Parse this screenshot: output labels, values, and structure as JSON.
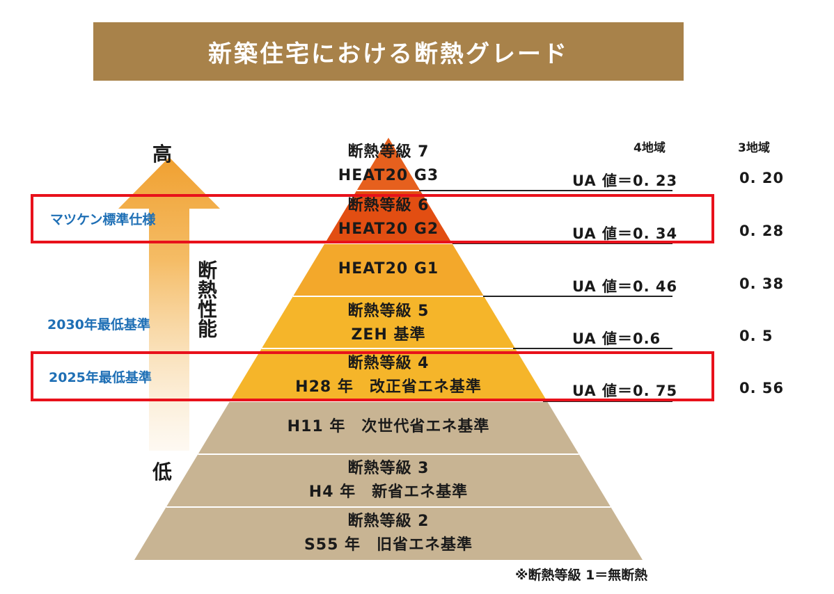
{
  "title": "新築住宅における断熱グレード",
  "colors": {
    "title_bg": "#A8824A",
    "tier_red": "#E24E12",
    "tier_orange": "#F3A82B",
    "tier_gold": "#F5B52A",
    "tier_beige": "#C8B493",
    "highlight_box": "#E8111B",
    "label_blue": "#1E6FB5",
    "arrow_orange": "#F0A030"
  },
  "axis": {
    "high": "高",
    "low": "低",
    "vertical_label": "断熱性能"
  },
  "columns": {
    "region4": "4地域",
    "region3": "3地域"
  },
  "levels": [
    {
      "line1": "断熱等級 7",
      "line2": "HEAT20 G3",
      "ua4": "UA 値＝0. 23",
      "ua3": "0. 20"
    },
    {
      "line1": "断熱等級 6",
      "line2": "HEAT20 G2",
      "ua4": "UA 値＝0. 34",
      "ua3": "0. 28"
    },
    {
      "line1": "HEAT20 G1",
      "line2": "",
      "ua4": "UA 値＝0. 46",
      "ua3": "0. 38"
    },
    {
      "line1": "断熱等級 5",
      "line2": "ZEH 基準",
      "ua4": "UA 値＝0.6",
      "ua3": "0. 5"
    },
    {
      "line1": "断熱等級 4",
      "line2": "H28 年　改正省エネ基準",
      "ua4": "UA 値＝0. 75",
      "ua3": "0. 56"
    },
    {
      "line1": "H11 年　次世代省エネ基準",
      "line2": ""
    },
    {
      "line1": "断熱等級 3",
      "line2": "H4 年　新省エネ基準"
    },
    {
      "line1": "断熱等級 2",
      "line2": "S55 年　旧省エネ基準"
    }
  ],
  "grade_labels": {
    "matsuken": "マツケン標準仕様",
    "min2030": "2030年最低基準",
    "min2025": "2025年最低基準"
  },
  "footnote": "※断熱等級 1＝無断熱"
}
